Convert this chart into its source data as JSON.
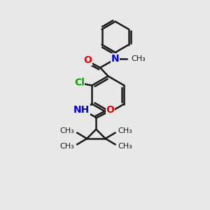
{
  "bg_color": "#e8e8e8",
  "bond_color": "#1a1a1a",
  "N_color": "#0000ee",
  "O_color": "#ee0000",
  "Cl_color": "#00aa00",
  "bond_width": 1.8,
  "figsize": [
    3.0,
    3.0
  ],
  "dpi": 100,
  "xlim": [
    0,
    10
  ],
  "ylim": [
    0,
    10
  ]
}
